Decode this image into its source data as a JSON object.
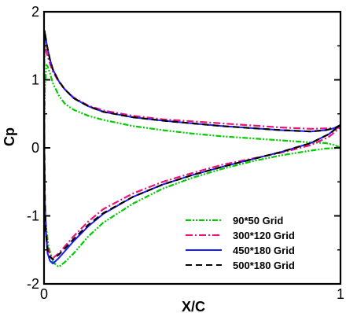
{
  "chart_data": {
    "type": "line",
    "title": "",
    "xlabel": "X/C",
    "ylabel": "Cp",
    "xlim": [
      0,
      1
    ],
    "ylim": [
      -2,
      2
    ],
    "x_ticks": [
      "0",
      "1"
    ],
    "y_ticks": [
      "-2",
      "-1",
      "0",
      "1",
      "2"
    ],
    "grid": false,
    "legend_position": "bottom-right",
    "series": [
      {
        "name": "90*50   Grid",
        "color": "#00cc00",
        "dash": "dash-dot-dot",
        "upper": [
          [
            1.0,
            0.0
          ],
          [
            0.98,
            0.04
          ],
          [
            0.95,
            0.07
          ],
          [
            0.9,
            0.08
          ],
          [
            0.8,
            0.11
          ],
          [
            0.7,
            0.14
          ],
          [
            0.6,
            0.17
          ],
          [
            0.5,
            0.21
          ],
          [
            0.4,
            0.26
          ],
          [
            0.3,
            0.32
          ],
          [
            0.2,
            0.41
          ],
          [
            0.15,
            0.47
          ],
          [
            0.1,
            0.56
          ],
          [
            0.07,
            0.65
          ],
          [
            0.05,
            0.77
          ],
          [
            0.03,
            0.95
          ],
          [
            0.02,
            1.1
          ],
          [
            0.012,
            1.2
          ],
          [
            0.008,
            1.22
          ]
        ],
        "lower": [
          [
            0.008,
            1.22
          ],
          [
            0.003,
            0.9
          ],
          [
            0.001,
            0.4
          ],
          [
            0.0,
            0.0
          ],
          [
            0.001,
            -0.5
          ],
          [
            0.003,
            -0.9
          ],
          [
            0.008,
            -1.2
          ],
          [
            0.015,
            -1.45
          ],
          [
            0.03,
            -1.68
          ],
          [
            0.05,
            -1.75
          ],
          [
            0.07,
            -1.68
          ],
          [
            0.1,
            -1.55
          ],
          [
            0.15,
            -1.3
          ],
          [
            0.2,
            -1.1
          ],
          [
            0.3,
            -0.82
          ],
          [
            0.4,
            -0.6
          ],
          [
            0.5,
            -0.44
          ],
          [
            0.6,
            -0.31
          ],
          [
            0.7,
            -0.2
          ],
          [
            0.8,
            -0.11
          ],
          [
            0.9,
            -0.04
          ],
          [
            0.95,
            -0.01
          ],
          [
            1.0,
            0.0
          ]
        ]
      },
      {
        "name": "300*120 Grid",
        "color": "#ee1177",
        "dash": "dash-dot",
        "upper": [
          [
            1.0,
            0.3
          ],
          [
            0.98,
            0.29
          ],
          [
            0.9,
            0.28
          ],
          [
            0.8,
            0.3
          ],
          [
            0.7,
            0.33
          ],
          [
            0.6,
            0.36
          ],
          [
            0.5,
            0.39
          ],
          [
            0.4,
            0.42
          ],
          [
            0.3,
            0.47
          ],
          [
            0.2,
            0.55
          ],
          [
            0.15,
            0.62
          ],
          [
            0.1,
            0.74
          ],
          [
            0.07,
            0.86
          ],
          [
            0.05,
            0.97
          ],
          [
            0.03,
            1.12
          ],
          [
            0.02,
            1.24
          ],
          [
            0.01,
            1.38
          ],
          [
            0.005,
            1.47
          ],
          [
            0.002,
            1.52
          ]
        ],
        "lower": [
          [
            0.002,
            1.52
          ],
          [
            0.0,
            1.1
          ],
          [
            0.001,
            0.0
          ],
          [
            0.003,
            -0.8
          ],
          [
            0.006,
            -1.2
          ],
          [
            0.012,
            -1.45
          ],
          [
            0.02,
            -1.57
          ],
          [
            0.03,
            -1.62
          ],
          [
            0.05,
            -1.55
          ],
          [
            0.07,
            -1.45
          ],
          [
            0.1,
            -1.3
          ],
          [
            0.15,
            -1.08
          ],
          [
            0.2,
            -0.9
          ],
          [
            0.3,
            -0.67
          ],
          [
            0.4,
            -0.5
          ],
          [
            0.5,
            -0.37
          ],
          [
            0.6,
            -0.25
          ],
          [
            0.7,
            -0.16
          ],
          [
            0.8,
            -0.07
          ],
          [
            0.9,
            0.04
          ],
          [
            0.96,
            0.16
          ],
          [
            1.0,
            0.3
          ]
        ]
      },
      {
        "name": "450*180 Grid",
        "color": "#1a1aff",
        "dash": "solid",
        "upper": [
          [
            1.0,
            0.34
          ],
          [
            0.98,
            0.29
          ],
          [
            0.95,
            0.26
          ],
          [
            0.9,
            0.24
          ],
          [
            0.8,
            0.26
          ],
          [
            0.7,
            0.29
          ],
          [
            0.6,
            0.32
          ],
          [
            0.5,
            0.36
          ],
          [
            0.4,
            0.4
          ],
          [
            0.3,
            0.45
          ],
          [
            0.2,
            0.53
          ],
          [
            0.15,
            0.61
          ],
          [
            0.1,
            0.73
          ],
          [
            0.07,
            0.86
          ],
          [
            0.05,
            0.98
          ],
          [
            0.03,
            1.15
          ],
          [
            0.02,
            1.3
          ],
          [
            0.01,
            1.5
          ],
          [
            0.005,
            1.63
          ],
          [
            0.002,
            1.72
          ]
        ],
        "lower": [
          [
            0.002,
            1.72
          ],
          [
            0.0,
            1.2
          ],
          [
            0.001,
            0.0
          ],
          [
            0.003,
            -0.8
          ],
          [
            0.006,
            -1.25
          ],
          [
            0.012,
            -1.55
          ],
          [
            0.02,
            -1.66
          ],
          [
            0.03,
            -1.7
          ],
          [
            0.05,
            -1.62
          ],
          [
            0.07,
            -1.52
          ],
          [
            0.1,
            -1.37
          ],
          [
            0.15,
            -1.15
          ],
          [
            0.2,
            -0.97
          ],
          [
            0.3,
            -0.72
          ],
          [
            0.4,
            -0.54
          ],
          [
            0.5,
            -0.4
          ],
          [
            0.6,
            -0.28
          ],
          [
            0.7,
            -0.17
          ],
          [
            0.8,
            -0.06
          ],
          [
            0.9,
            0.07
          ],
          [
            0.96,
            0.2
          ],
          [
            1.0,
            0.34
          ]
        ]
      },
      {
        "name": "500*180 Grid",
        "color": "#000000",
        "dash": "dashed",
        "upper": [
          [
            1.0,
            0.33
          ],
          [
            0.98,
            0.29
          ],
          [
            0.95,
            0.26
          ],
          [
            0.9,
            0.24
          ],
          [
            0.8,
            0.26
          ],
          [
            0.7,
            0.29
          ],
          [
            0.6,
            0.32
          ],
          [
            0.5,
            0.36
          ],
          [
            0.4,
            0.4
          ],
          [
            0.3,
            0.45
          ],
          [
            0.2,
            0.53
          ],
          [
            0.15,
            0.61
          ],
          [
            0.1,
            0.73
          ],
          [
            0.07,
            0.86
          ],
          [
            0.05,
            0.98
          ],
          [
            0.03,
            1.15
          ],
          [
            0.02,
            1.3
          ],
          [
            0.01,
            1.5
          ],
          [
            0.005,
            1.63
          ],
          [
            0.002,
            1.72
          ]
        ],
        "lower": [
          [
            0.002,
            1.72
          ],
          [
            0.0,
            1.2
          ],
          [
            0.001,
            0.0
          ],
          [
            0.003,
            -0.8
          ],
          [
            0.006,
            -1.22
          ],
          [
            0.012,
            -1.5
          ],
          [
            0.02,
            -1.6
          ],
          [
            0.03,
            -1.64
          ],
          [
            0.05,
            -1.57
          ],
          [
            0.07,
            -1.48
          ],
          [
            0.1,
            -1.34
          ],
          [
            0.15,
            -1.13
          ],
          [
            0.2,
            -0.96
          ],
          [
            0.3,
            -0.72
          ],
          [
            0.4,
            -0.54
          ],
          [
            0.5,
            -0.4
          ],
          [
            0.6,
            -0.28
          ],
          [
            0.7,
            -0.17
          ],
          [
            0.8,
            -0.06
          ],
          [
            0.9,
            0.07
          ],
          [
            0.96,
            0.2
          ],
          [
            1.0,
            0.33
          ]
        ]
      }
    ]
  }
}
